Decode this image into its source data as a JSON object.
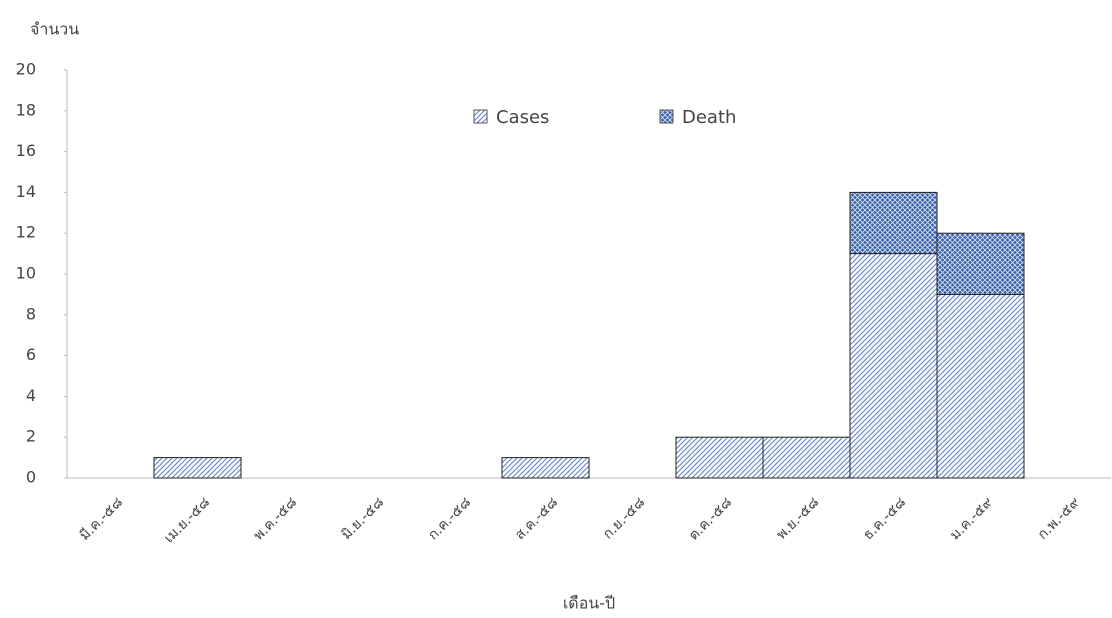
{
  "chart_data": {
    "type": "bar",
    "stacked": true,
    "y_axis_label": "จำนวน",
    "x_axis_label": "เดือน-ปี",
    "categories": [
      "มี.ค.-๕๘",
      "เม.ย.-๕๘",
      "พ.ค.-๕๘",
      "มิ.ย.-๕๘",
      "ก.ค.-๕๘",
      "ส.ค.-๕๘",
      "ก.ย.-๕๘",
      "ต.ค.-๕๘",
      "พ.ย.-๕๘",
      "ธ.ค.-๕๘",
      "ม.ค.-๕๙",
      "ก.พ.-๕๙"
    ],
    "series": [
      {
        "name": "Cases",
        "color": "#5b7fc4",
        "values": [
          0,
          1,
          0,
          0,
          0,
          1,
          0,
          2,
          2,
          11,
          9,
          0
        ]
      },
      {
        "name": "Death",
        "color": "#3a62a8",
        "values": [
          0,
          0,
          0,
          0,
          0,
          0,
          0,
          0,
          0,
          3,
          3,
          0
        ]
      }
    ],
    "ylim": [
      0,
      20
    ],
    "yticks": [
      0,
      2,
      4,
      6,
      8,
      10,
      12,
      14,
      16,
      18,
      20
    ]
  }
}
